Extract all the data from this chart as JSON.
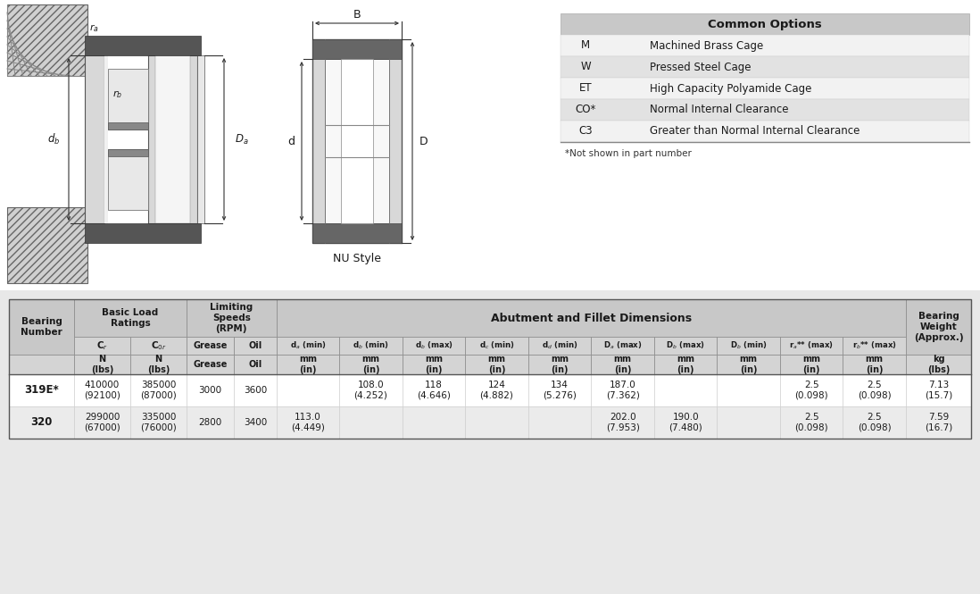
{
  "bg_color": "#f2f2f2",
  "white": "#ffffff",
  "common_options_title": "Common Options",
  "common_options_rows": [
    [
      "M",
      "Machined Brass Cage",
      false
    ],
    [
      "W",
      "Pressed Steel Cage",
      true
    ],
    [
      "ET",
      "High Capacity Polyamide Cage",
      false
    ],
    [
      "CO*",
      "Normal Internal Clearance",
      true
    ],
    [
      "C3",
      "Greater than Normal Internal Clearance",
      false
    ]
  ],
  "footnote": "*Not shown in part number",
  "data_rows": [
    {
      "bearing": "319E*",
      "cr": "410000\n(92100)",
      "cor": "385000\n(87000)",
      "grease": "3000",
      "oil": "3600",
      "da_min": "",
      "db_min": "108.0\n(4.252)",
      "db_max": "118\n(4.646)",
      "dc_min": "124\n(4.882)",
      "dd_min": "134\n(5.276)",
      "Da_max": "187.0\n(7.362)",
      "Db_max": "",
      "Db_min": "",
      "ra_max": "2.5\n(0.098)",
      "rb_max": "2.5\n(0.098)",
      "weight": "7.13\n(15.7)"
    },
    {
      "bearing": "320",
      "cr": "299000\n(67000)",
      "cor": "335000\n(76000)",
      "grease": "2800",
      "oil": "3400",
      "da_min": "113.0\n(4.449)",
      "db_min": "",
      "db_max": "",
      "dc_min": "",
      "dd_min": "",
      "Da_max": "202.0\n(7.953)",
      "Db_max": "190.0\n(7.480)",
      "Db_min": "",
      "ra_max": "2.5\n(0.098)",
      "rb_max": "2.5\n(0.098)",
      "weight": "7.59\n(16.7)"
    }
  ]
}
